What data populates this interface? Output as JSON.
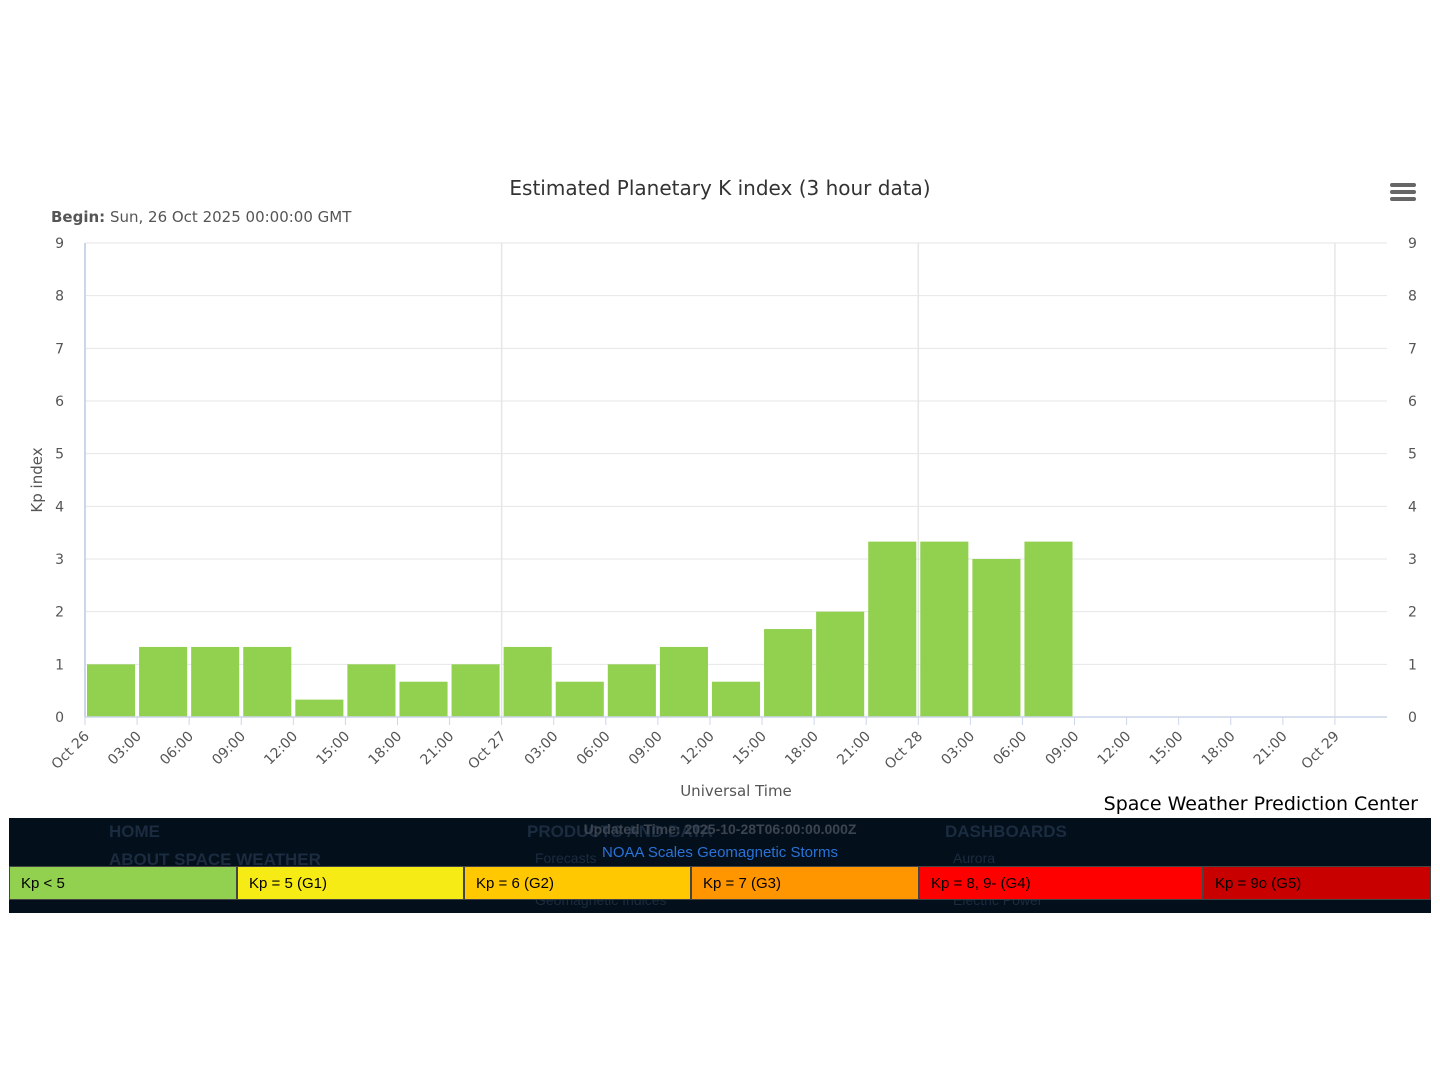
{
  "chart_data": {
    "type": "bar",
    "title": "Estimated Planetary K index (3 hour data)",
    "subtitle_label": "Begin:",
    "subtitle_value": "Sun, 26 Oct 2025 00:00:00 GMT",
    "xlabel": "Universal Time",
    "ylabel": "Kp index",
    "ylim": [
      0,
      9
    ],
    "y_ticks": [
      0,
      1,
      2,
      3,
      4,
      5,
      6,
      7,
      8,
      9
    ],
    "grid": true,
    "x_range_hours": [
      0,
      72
    ],
    "x_ticks": [
      "Oct 26",
      "03:00",
      "06:00",
      "09:00",
      "12:00",
      "15:00",
      "18:00",
      "21:00",
      "Oct 27",
      "03:00",
      "06:00",
      "09:00",
      "12:00",
      "15:00",
      "18:00",
      "21:00",
      "Oct 28",
      "03:00",
      "06:00",
      "09:00",
      "12:00",
      "15:00",
      "18:00",
      "21:00",
      "Oct 29"
    ],
    "categories": [
      "Oct 26 00:00",
      "Oct 26 03:00",
      "Oct 26 06:00",
      "Oct 26 09:00",
      "Oct 26 12:00",
      "Oct 26 15:00",
      "Oct 26 18:00",
      "Oct 26 21:00",
      "Oct 27 00:00",
      "Oct 27 03:00",
      "Oct 27 06:00",
      "Oct 27 09:00",
      "Oct 27 12:00",
      "Oct 27 15:00",
      "Oct 27 18:00",
      "Oct 27 21:00",
      "Oct 28 00:00",
      "Oct 28 03:00",
      "Oct 28 06:00"
    ],
    "values": [
      1.0,
      1.33,
      1.33,
      1.33,
      0.33,
      1.0,
      0.67,
      1.0,
      1.33,
      0.67,
      1.0,
      1.33,
      0.67,
      1.67,
      2.0,
      3.33,
      3.33,
      3.0,
      3.33
    ],
    "bar_color": "#92d050"
  },
  "menu_icon": "hamburger-menu-icon",
  "credit": "Space Weather Prediction Center",
  "footer": {
    "updated": "Updated Time: 2025-10-28T06:00:00.000Z",
    "scales_link": "NOAA Scales Geomagnetic Storms",
    "nav": {
      "home": "HOME",
      "about": "ABOUT SPACE WEATHER",
      "products": "PRODUCTS AND DATA",
      "forecasts": "Forecasts",
      "geomag": "Geomagnetic Indices",
      "dashboards": "DASHBOARDS",
      "aurora": "Aurora",
      "electric": "Electric Power"
    },
    "legend": [
      {
        "label": "Kp < 5",
        "color": "#92d050"
      },
      {
        "label": "Kp = 5 (G1)",
        "color": "#f6eb14"
      },
      {
        "label": "Kp = 6 (G2)",
        "color": "#ffc800"
      },
      {
        "label": "Kp = 7 (G3)",
        "color": "#ff9600"
      },
      {
        "label": "Kp = 8, 9- (G4)",
        "color": "#ff0000"
      },
      {
        "label": "Kp = 9o (G5)",
        "color": "#c80000"
      }
    ]
  }
}
